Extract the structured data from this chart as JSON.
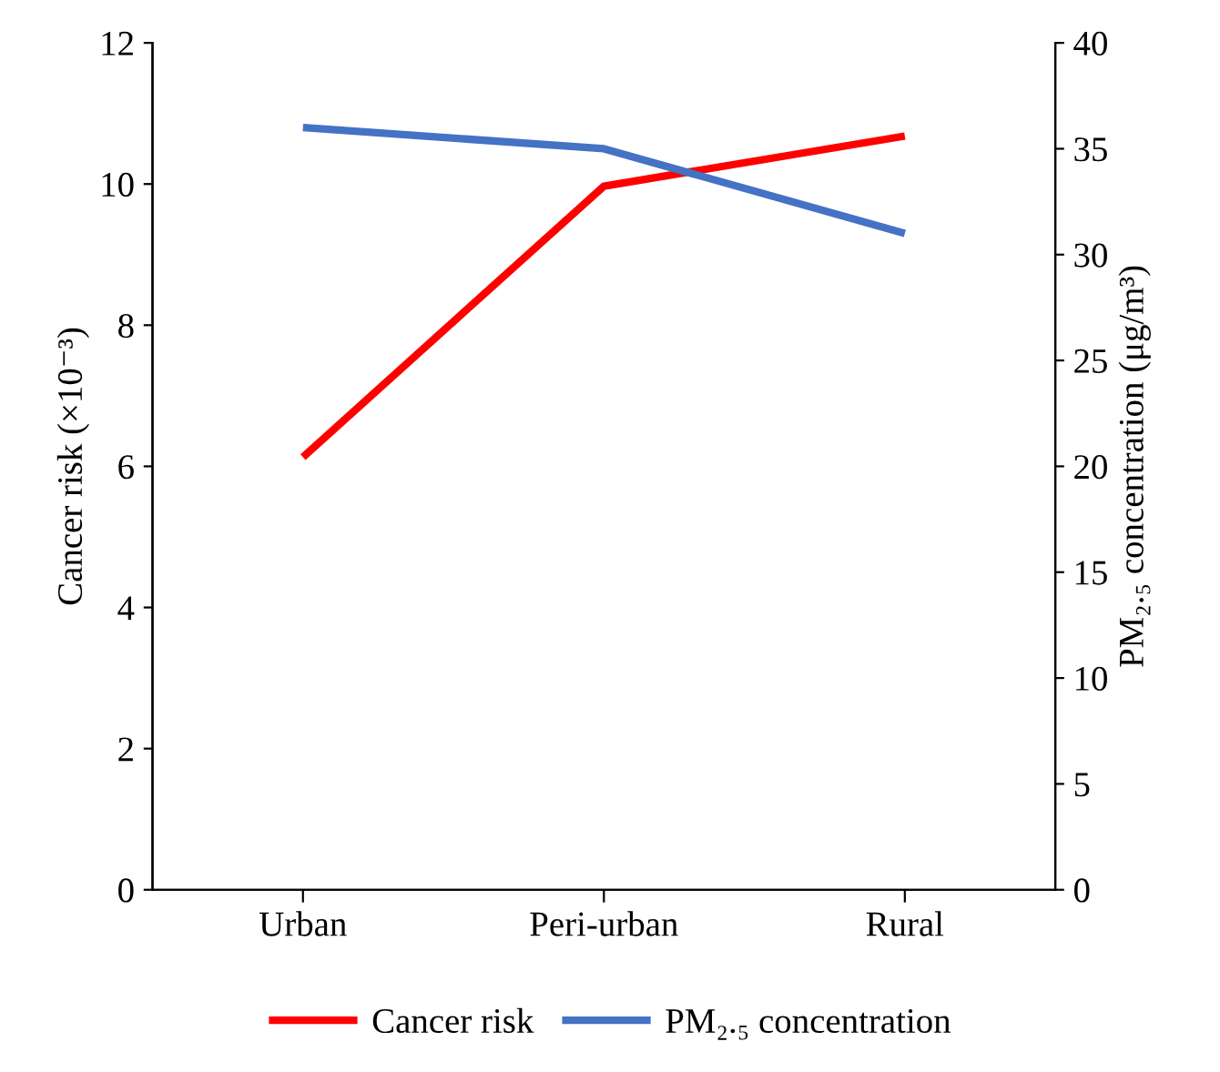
{
  "chart_data": {
    "type": "line",
    "categories": [
      "Urban",
      "Peri-urban",
      "Rural"
    ],
    "series": [
      {
        "name": "Cancer risk",
        "color": "#ff0000",
        "values": [
          6.13,
          9.97,
          10.68
        ]
      },
      {
        "name": "PM₂.₅ concentration",
        "color": "#4472c4",
        "values": [
          36,
          35,
          31
        ],
        "axis": "y2"
      }
    ],
    "ylabel": "Cancer risk (×10⁻³)",
    "y2label": "PM₂.₅ concentration (μg/m³)",
    "ylim": [
      0,
      12
    ],
    "yticks": [
      0,
      2,
      4,
      6,
      8,
      10,
      12
    ],
    "y2lim": [
      0,
      40
    ],
    "y2ticks": [
      0,
      5,
      10,
      15,
      20,
      25,
      30,
      35,
      40
    ],
    "legend": "bottom",
    "grid": false,
    "marker": "none",
    "line_style": "solid"
  }
}
